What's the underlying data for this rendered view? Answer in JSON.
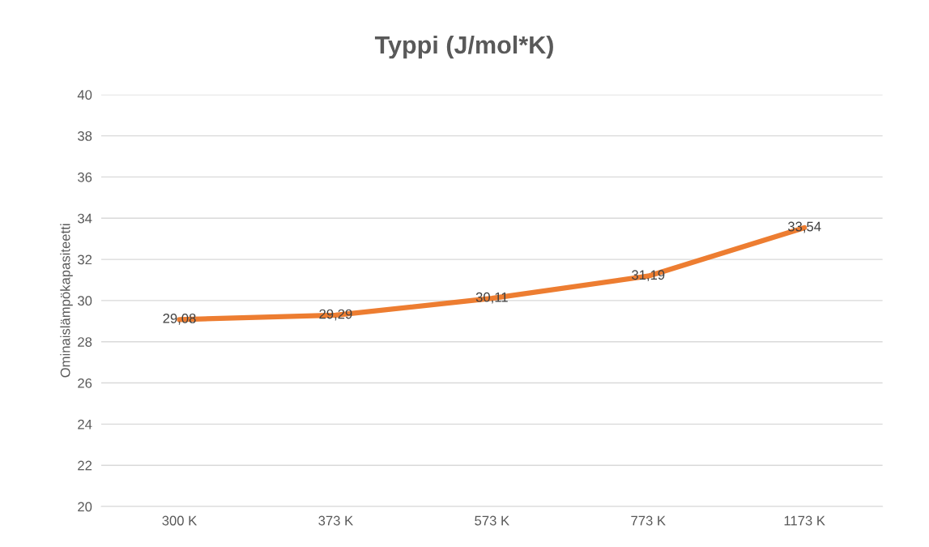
{
  "chart_data": {
    "type": "line",
    "title": "Typpi (J/mol*K)",
    "ylabel": "Ominaislämpökapasiteetti",
    "categories": [
      "300 K",
      "373 K",
      "573 K",
      "773 K",
      "1173 K"
    ],
    "series": [
      {
        "color": "#ed7d31",
        "values": [
          29.08,
          29.29,
          30.11,
          31.19,
          33.54
        ],
        "value_labels": [
          "29,08",
          "29,29",
          "30,11",
          "31,19",
          "33,54"
        ]
      }
    ],
    "ylim": [
      20,
      40
    ],
    "yticks": [
      20,
      22,
      24,
      26,
      28,
      30,
      32,
      34,
      36,
      38,
      40
    ],
    "grid": "y",
    "legend": false,
    "marker": "none",
    "line_style": "solid"
  }
}
